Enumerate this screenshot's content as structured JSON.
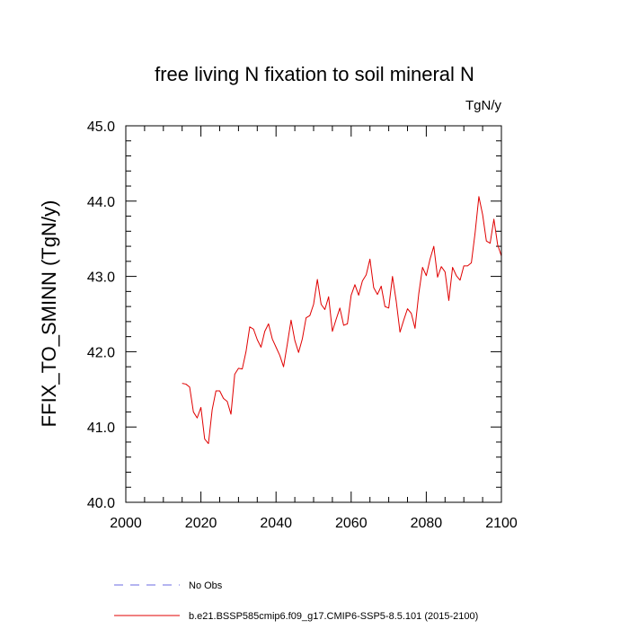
{
  "chart_data": {
    "type": "line",
    "title": "free living N fixation to soil mineral N",
    "units": "TgN/y",
    "ylabel": "FFIX_TO_SMINN  (TgN/y)",
    "xlabel": "",
    "xlim": [
      2000,
      2100
    ],
    "ylim": [
      40.0,
      45.0
    ],
    "x_ticks": [
      2000,
      2020,
      2040,
      2060,
      2080,
      2100
    ],
    "x_tick_labels": [
      "2000",
      "2020",
      "2040",
      "2060",
      "2080",
      "2100"
    ],
    "y_ticks": [
      40.0,
      41.0,
      42.0,
      43.0,
      44.0,
      45.0
    ],
    "y_tick_labels": [
      "40.0",
      "41.0",
      "42.0",
      "43.0",
      "44.0",
      "45.0"
    ],
    "grid": false,
    "legend_position": "bottom",
    "series": [
      {
        "name": "No Obs",
        "color": "#6a6ae0",
        "dash": "dashed",
        "x": [],
        "y": []
      },
      {
        "name": "b.e21.BSSP585cmip6.f09_g17.CMIP6-SSP5-8.5.101 (2015-2100)",
        "color": "#e00000",
        "dash": "solid",
        "x": [
          2015,
          2016,
          2017,
          2018,
          2019,
          2020,
          2021,
          2022,
          2023,
          2024,
          2025,
          2026,
          2027,
          2028,
          2029,
          2030,
          2031,
          2032,
          2033,
          2034,
          2035,
          2036,
          2037,
          2038,
          2039,
          2040,
          2041,
          2042,
          2043,
          2044,
          2045,
          2046,
          2047,
          2048,
          2049,
          2050,
          2051,
          2052,
          2053,
          2054,
          2055,
          2056,
          2057,
          2058,
          2059,
          2060,
          2061,
          2062,
          2063,
          2064,
          2065,
          2066,
          2067,
          2068,
          2069,
          2070,
          2071,
          2072,
          2073,
          2074,
          2075,
          2076,
          2077,
          2078,
          2079,
          2080,
          2081,
          2082,
          2083,
          2084,
          2085,
          2086,
          2087,
          2088,
          2089,
          2090,
          2091,
          2092,
          2093,
          2094,
          2095,
          2096,
          2097,
          2098,
          2099,
          2100
        ],
        "y": [
          41.58,
          41.57,
          41.53,
          41.2,
          41.12,
          41.26,
          40.84,
          40.78,
          41.23,
          41.48,
          41.48,
          41.38,
          41.34,
          41.17,
          41.7,
          41.78,
          41.77,
          42.0,
          42.33,
          42.3,
          42.16,
          42.06,
          42.27,
          42.37,
          42.17,
          42.06,
          41.95,
          41.8,
          42.1,
          42.42,
          42.15,
          41.99,
          42.17,
          42.45,
          42.48,
          42.63,
          42.96,
          42.63,
          42.56,
          42.73,
          42.27,
          42.43,
          42.58,
          42.35,
          42.37,
          42.75,
          42.89,
          42.75,
          42.94,
          43.02,
          43.23,
          42.85,
          42.76,
          42.87,
          42.6,
          42.58,
          43.0,
          42.67,
          42.26,
          42.42,
          42.57,
          42.51,
          42.31,
          42.77,
          43.12,
          43.01,
          43.23,
          43.4,
          42.99,
          43.13,
          43.06,
          42.68,
          43.12,
          43.01,
          42.95,
          43.14,
          43.14,
          43.18,
          43.58,
          44.06,
          43.82,
          43.47,
          43.44,
          43.76,
          43.42,
          43.27
        ]
      }
    ]
  }
}
